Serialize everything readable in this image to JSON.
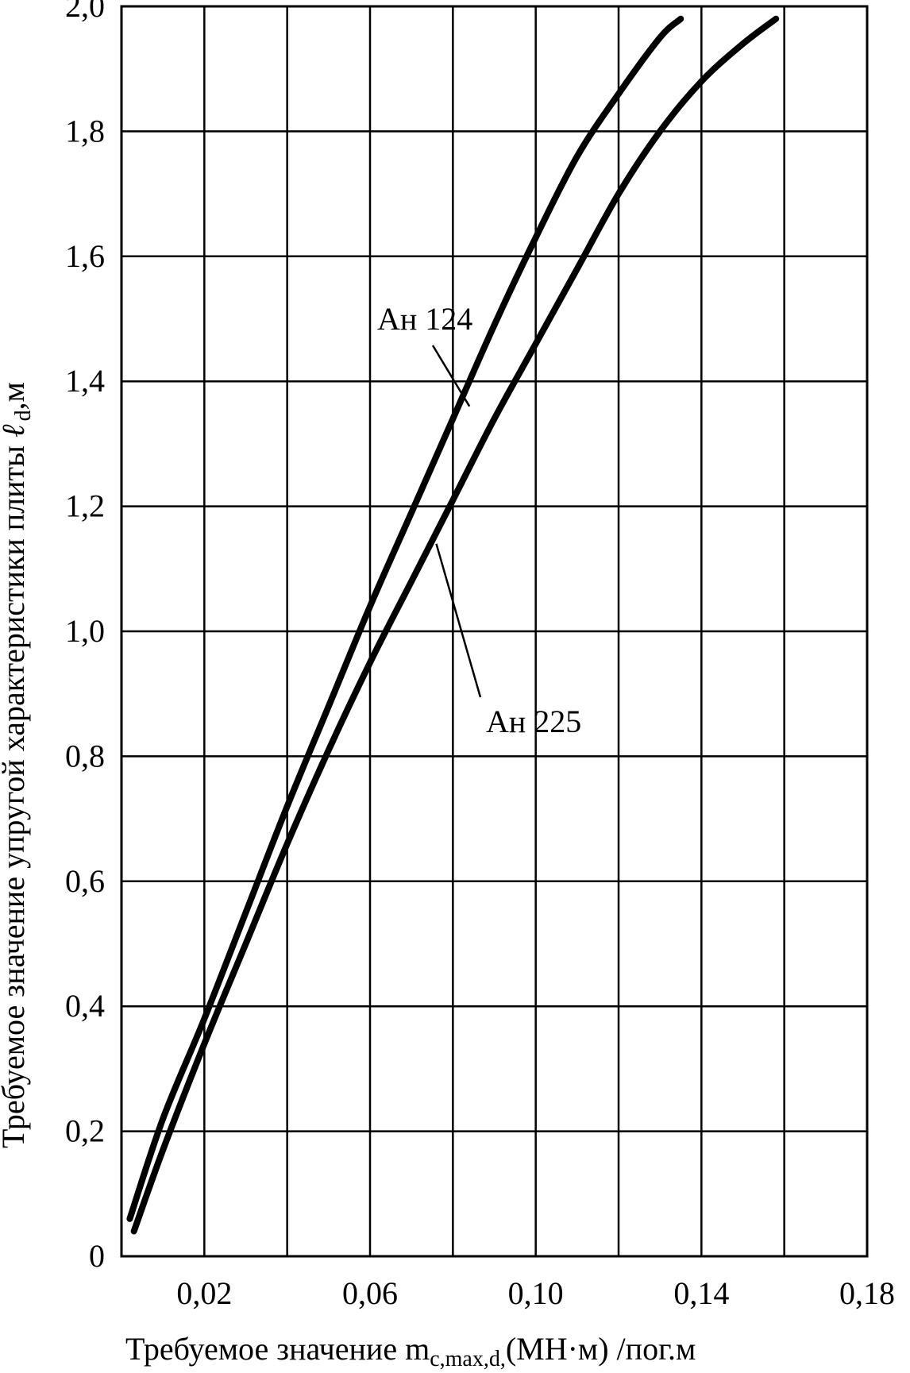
{
  "chart_data": {
    "type": "line",
    "xlabel_main": "Требуемое значение m",
    "xlabel_sub": "c,max,d,",
    "xlabel_tail": "(МН·м) /пог.м",
    "ylabel_main": "Требуемое значение упругой характеристики плиты ",
    "ylabel_symbol": "ℓ",
    "ylabel_sub": "d",
    "ylabel_tail": ",м",
    "xlim": [
      0,
      0.18
    ],
    "ylim": [
      0,
      2.0
    ],
    "x_ticks": [
      0.02,
      0.06,
      0.1,
      0.14,
      0.18
    ],
    "x_tick_labels": [
      "0,02",
      "0,06",
      "0,10",
      "0,14",
      "0,18"
    ],
    "x_grid": [
      0.02,
      0.04,
      0.06,
      0.08,
      0.1,
      0.12,
      0.14,
      0.16,
      0.18
    ],
    "y_ticks": [
      0,
      0.2,
      0.4,
      0.6,
      0.8,
      1.0,
      1.2,
      1.4,
      1.6,
      1.8,
      2.0
    ],
    "y_tick_labels": [
      "0",
      "0,2",
      "0,4",
      "0,6",
      "0,8",
      "1,0",
      "1,2",
      "1,4",
      "1,6",
      "1,8",
      "2,0"
    ],
    "grid": true,
    "series": [
      {
        "name": "Ан 124",
        "points": [
          [
            0.002,
            0.06
          ],
          [
            0.01,
            0.22
          ],
          [
            0.02,
            0.38
          ],
          [
            0.03,
            0.55
          ],
          [
            0.04,
            0.72
          ],
          [
            0.05,
            0.88
          ],
          [
            0.06,
            1.04
          ],
          [
            0.07,
            1.19
          ],
          [
            0.08,
            1.34
          ],
          [
            0.09,
            1.49
          ],
          [
            0.1,
            1.63
          ],
          [
            0.11,
            1.76
          ],
          [
            0.12,
            1.86
          ],
          [
            0.13,
            1.95
          ],
          [
            0.135,
            1.98
          ]
        ]
      },
      {
        "name": "Ан 225",
        "points": [
          [
            0.003,
            0.04
          ],
          [
            0.01,
            0.17
          ],
          [
            0.02,
            0.34
          ],
          [
            0.03,
            0.5
          ],
          [
            0.04,
            0.66
          ],
          [
            0.05,
            0.81
          ],
          [
            0.06,
            0.95
          ],
          [
            0.07,
            1.08
          ],
          [
            0.08,
            1.21
          ],
          [
            0.09,
            1.34
          ],
          [
            0.1,
            1.46
          ],
          [
            0.11,
            1.58
          ],
          [
            0.12,
            1.7
          ],
          [
            0.13,
            1.8
          ],
          [
            0.14,
            1.88
          ],
          [
            0.15,
            1.94
          ],
          [
            0.158,
            1.98
          ]
        ]
      }
    ],
    "annotations": [
      {
        "text": "Ан 124",
        "series": 0,
        "anchor_x": 0.084,
        "anchor_y": 1.36
      },
      {
        "text": "Ан 225",
        "series": 1,
        "anchor_x": 0.076,
        "anchor_y": 1.14
      }
    ]
  }
}
